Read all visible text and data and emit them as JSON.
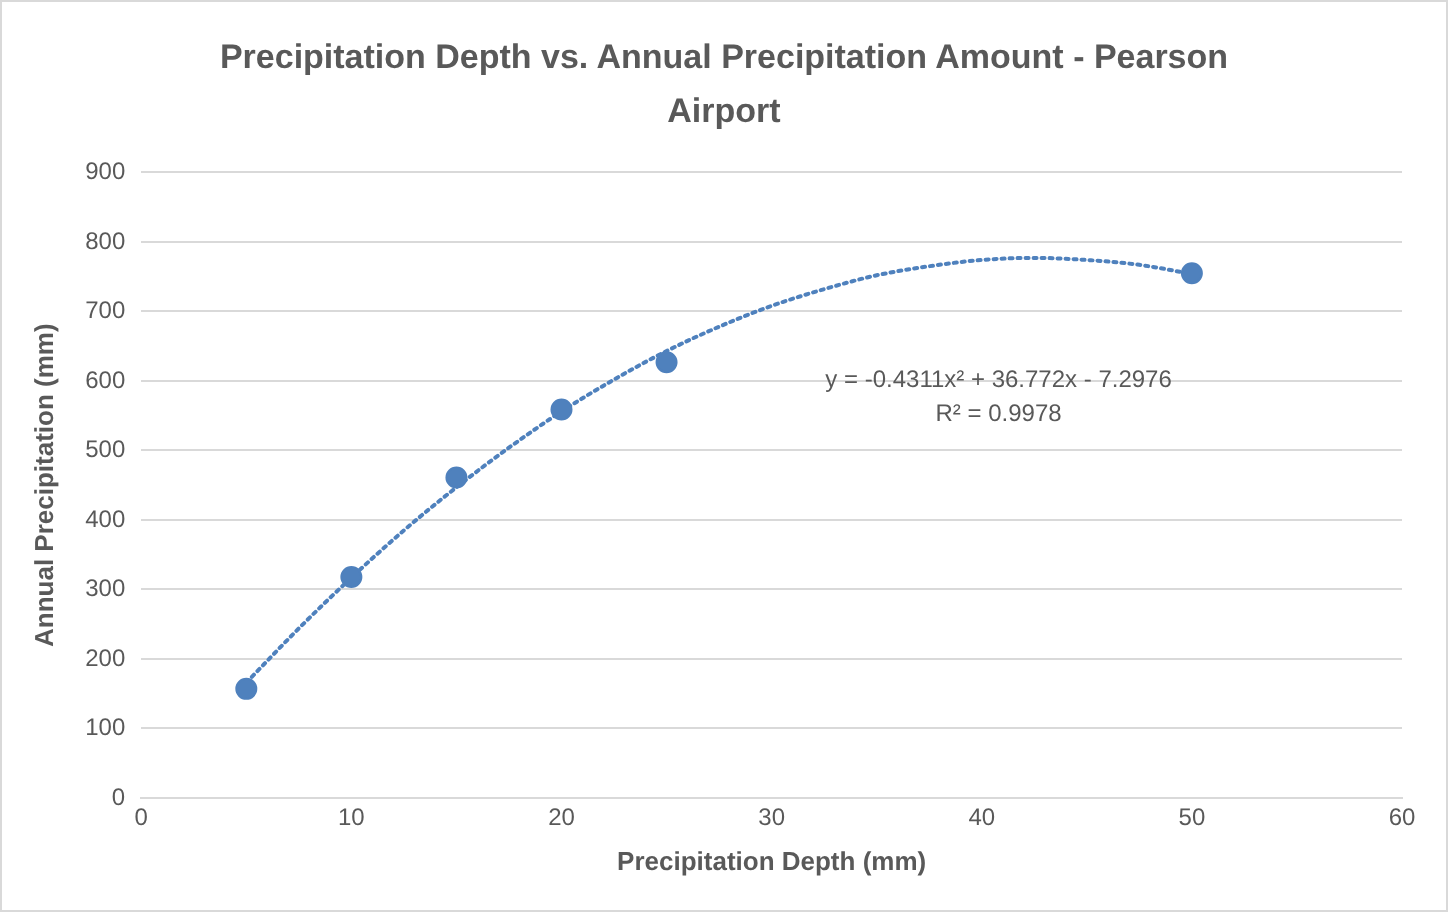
{
  "chart_data": {
    "type": "scatter",
    "title": "Precipitation Depth vs. Annual Precipitation Amount - Pearson Airport",
    "xlabel": "Precipitation Depth (mm)",
    "ylabel": "Annual Precipitation (mm)",
    "xlim": [
      0,
      60
    ],
    "xticks": [
      0,
      10,
      20,
      30,
      40,
      50,
      60
    ],
    "ylim": [
      0,
      900
    ],
    "yticks": [
      0,
      100,
      200,
      300,
      400,
      500,
      600,
      700,
      800,
      900
    ],
    "grid": "y",
    "legend": false,
    "marker": "circle",
    "series": [
      {
        "color": "#4f81bd",
        "x": [
          5,
          10,
          15,
          20,
          25,
          50
        ],
        "values": [
          157,
          318,
          461,
          559,
          627,
          755
        ]
      },
      {
        "type": "line",
        "color": "#4f81bd",
        "marker": "none",
        "line_style": "dotted",
        "x": [
          5,
          7.5,
          10,
          12.5,
          15,
          17.5,
          20,
          22.5,
          25,
          27.5,
          30,
          32.5,
          35,
          37.5,
          40,
          42.5,
          45,
          47.5,
          50
        ],
        "values": [
          166,
          244,
          317,
          385,
          447,
          504,
          556,
          602,
          643,
          678,
          708,
          732,
          752,
          765,
          774,
          777,
          774,
          767,
          754
        ]
      }
    ],
    "annotations": [
      "y = -0.4311x² + 36.772x - 7.2976",
      "R² = 0.9978"
    ]
  }
}
